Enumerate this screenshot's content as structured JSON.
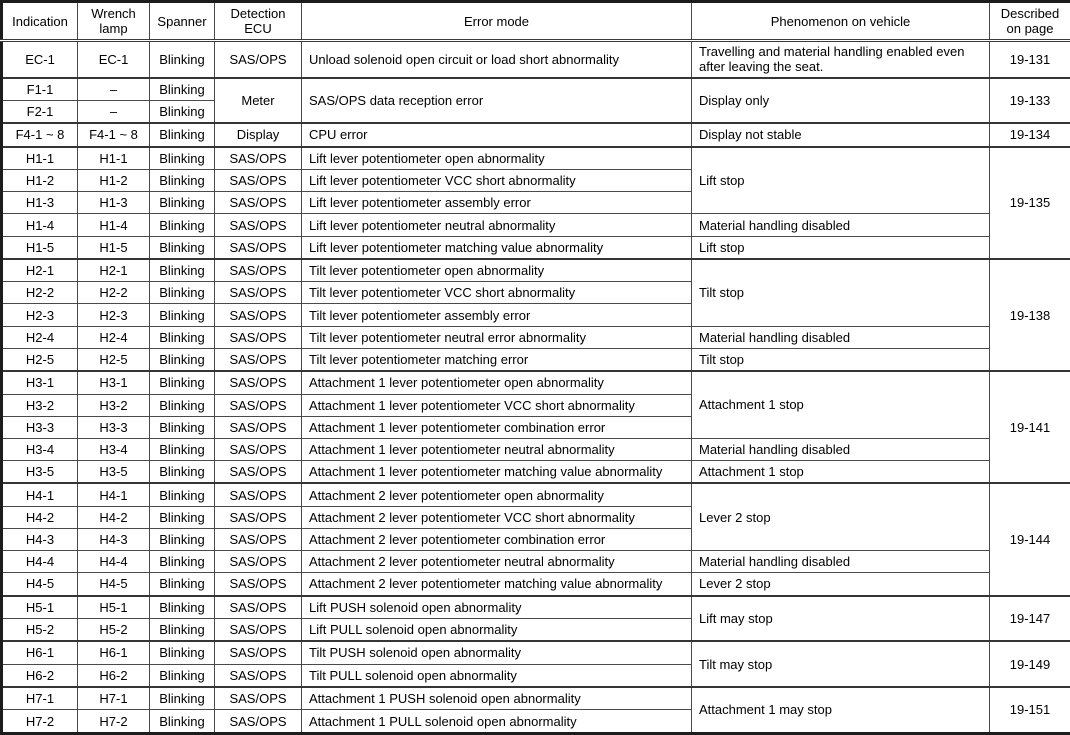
{
  "table": {
    "columns": [
      {
        "label": "Indication"
      },
      {
        "label": "Wrench\nlamp"
      },
      {
        "label": "Spanner"
      },
      {
        "label": "Detection\nECU"
      },
      {
        "label": "Error mode"
      },
      {
        "label": "Phenomenon on vehicle"
      },
      {
        "label": "Described\non page"
      }
    ],
    "rows": [
      {
        "group_start": true,
        "tall": true,
        "cells": [
          {
            "col": 0,
            "text": "EC-1"
          },
          {
            "col": 1,
            "text": "EC-1"
          },
          {
            "col": 2,
            "text": "Blinking"
          },
          {
            "col": 3,
            "text": "SAS/OPS"
          },
          {
            "col": 4,
            "text": "Unload solenoid open circuit or load short abnormality"
          },
          {
            "col": 5,
            "text": "Travelling and material handling enabled even after leaving the seat."
          },
          {
            "col": 6,
            "text": "19-131"
          }
        ]
      },
      {
        "group_start": true,
        "cells": [
          {
            "col": 0,
            "text": "F1-1"
          },
          {
            "col": 1,
            "text": "–"
          },
          {
            "col": 2,
            "text": "Blinking"
          },
          {
            "col": 3,
            "text": "Meter",
            "rowspan": 2
          },
          {
            "col": 4,
            "text": "SAS/OPS data reception error",
            "rowspan": 2
          },
          {
            "col": 5,
            "text": "Display only",
            "rowspan": 2
          },
          {
            "col": 6,
            "text": "19-133",
            "rowspan": 2
          }
        ]
      },
      {
        "cells": [
          {
            "col": 0,
            "text": "F2-1"
          },
          {
            "col": 1,
            "text": "–"
          },
          {
            "col": 2,
            "text": "Blinking"
          }
        ]
      },
      {
        "group_start": true,
        "cells": [
          {
            "col": 0,
            "text": "F4-1 ~ 8"
          },
          {
            "col": 1,
            "text": "F4-1 ~ 8"
          },
          {
            "col": 2,
            "text": "Blinking"
          },
          {
            "col": 3,
            "text": "Display"
          },
          {
            "col": 4,
            "text": "CPU error"
          },
          {
            "col": 5,
            "text": "Display not stable"
          },
          {
            "col": 6,
            "text": "19-134"
          }
        ]
      },
      {
        "group_start": true,
        "cells": [
          {
            "col": 0,
            "text": "H1-1"
          },
          {
            "col": 1,
            "text": "H1-1"
          },
          {
            "col": 2,
            "text": "Blinking"
          },
          {
            "col": 3,
            "text": "SAS/OPS"
          },
          {
            "col": 4,
            "text": "Lift lever potentiometer open abnormality"
          },
          {
            "col": 5,
            "text": "Lift stop",
            "rowspan": 3
          },
          {
            "col": 6,
            "text": "19-135",
            "rowspan": 5
          }
        ]
      },
      {
        "cells": [
          {
            "col": 0,
            "text": "H1-2"
          },
          {
            "col": 1,
            "text": "H1-2"
          },
          {
            "col": 2,
            "text": "Blinking"
          },
          {
            "col": 3,
            "text": "SAS/OPS"
          },
          {
            "col": 4,
            "text": "Lift lever potentiometer VCC short abnormality"
          }
        ]
      },
      {
        "cells": [
          {
            "col": 0,
            "text": "H1-3"
          },
          {
            "col": 1,
            "text": "H1-3"
          },
          {
            "col": 2,
            "text": "Blinking"
          },
          {
            "col": 3,
            "text": "SAS/OPS"
          },
          {
            "col": 4,
            "text": "Lift lever potentiometer assembly error"
          }
        ]
      },
      {
        "cells": [
          {
            "col": 0,
            "text": "H1-4"
          },
          {
            "col": 1,
            "text": "H1-4"
          },
          {
            "col": 2,
            "text": "Blinking"
          },
          {
            "col": 3,
            "text": "SAS/OPS"
          },
          {
            "col": 4,
            "text": "Lift lever potentiometer neutral abnormality"
          },
          {
            "col": 5,
            "text": "Material handling disabled"
          }
        ]
      },
      {
        "cells": [
          {
            "col": 0,
            "text": "H1-5"
          },
          {
            "col": 1,
            "text": "H1-5"
          },
          {
            "col": 2,
            "text": "Blinking"
          },
          {
            "col": 3,
            "text": "SAS/OPS"
          },
          {
            "col": 4,
            "text": "Lift lever potentiometer matching value abnormality"
          },
          {
            "col": 5,
            "text": "Lift stop"
          }
        ]
      },
      {
        "group_start": true,
        "cells": [
          {
            "col": 0,
            "text": "H2-1"
          },
          {
            "col": 1,
            "text": "H2-1"
          },
          {
            "col": 2,
            "text": "Blinking"
          },
          {
            "col": 3,
            "text": "SAS/OPS"
          },
          {
            "col": 4,
            "text": "Tilt lever potentiometer open abnormality"
          },
          {
            "col": 5,
            "text": "Tilt stop",
            "rowspan": 3
          },
          {
            "col": 6,
            "text": "19-138",
            "rowspan": 5
          }
        ]
      },
      {
        "cells": [
          {
            "col": 0,
            "text": "H2-2"
          },
          {
            "col": 1,
            "text": "H2-2"
          },
          {
            "col": 2,
            "text": "Blinking"
          },
          {
            "col": 3,
            "text": "SAS/OPS"
          },
          {
            "col": 4,
            "text": "Tilt lever potentiometer VCC short abnormality"
          }
        ]
      },
      {
        "cells": [
          {
            "col": 0,
            "text": "H2-3"
          },
          {
            "col": 1,
            "text": "H2-3"
          },
          {
            "col": 2,
            "text": "Blinking"
          },
          {
            "col": 3,
            "text": "SAS/OPS"
          },
          {
            "col": 4,
            "text": "Tilt lever potentiometer assembly error"
          }
        ]
      },
      {
        "cells": [
          {
            "col": 0,
            "text": "H2-4"
          },
          {
            "col": 1,
            "text": "H2-4"
          },
          {
            "col": 2,
            "text": "Blinking"
          },
          {
            "col": 3,
            "text": "SAS/OPS"
          },
          {
            "col": 4,
            "text": "Tilt lever potentiometer neutral error abnormality"
          },
          {
            "col": 5,
            "text": "Material handling disabled"
          }
        ]
      },
      {
        "cells": [
          {
            "col": 0,
            "text": "H2-5"
          },
          {
            "col": 1,
            "text": "H2-5"
          },
          {
            "col": 2,
            "text": "Blinking"
          },
          {
            "col": 3,
            "text": "SAS/OPS"
          },
          {
            "col": 4,
            "text": "Tilt lever potentiometer matching error"
          },
          {
            "col": 5,
            "text": "Tilt stop"
          }
        ]
      },
      {
        "group_start": true,
        "cells": [
          {
            "col": 0,
            "text": "H3-1"
          },
          {
            "col": 1,
            "text": "H3-1"
          },
          {
            "col": 2,
            "text": "Blinking"
          },
          {
            "col": 3,
            "text": "SAS/OPS"
          },
          {
            "col": 4,
            "text": "Attachment 1 lever potentiometer open abnormality"
          },
          {
            "col": 5,
            "text": "Attachment 1 stop",
            "rowspan": 3
          },
          {
            "col": 6,
            "text": "19-141",
            "rowspan": 5
          }
        ]
      },
      {
        "cells": [
          {
            "col": 0,
            "text": "H3-2"
          },
          {
            "col": 1,
            "text": "H3-2"
          },
          {
            "col": 2,
            "text": "Blinking"
          },
          {
            "col": 3,
            "text": "SAS/OPS"
          },
          {
            "col": 4,
            "text": "Attachment 1 lever potentiometer VCC short abnormality"
          }
        ]
      },
      {
        "cells": [
          {
            "col": 0,
            "text": "H3-3"
          },
          {
            "col": 1,
            "text": "H3-3"
          },
          {
            "col": 2,
            "text": "Blinking"
          },
          {
            "col": 3,
            "text": "SAS/OPS"
          },
          {
            "col": 4,
            "text": "Attachment 1 lever potentiometer combination error"
          }
        ]
      },
      {
        "cells": [
          {
            "col": 0,
            "text": "H3-4"
          },
          {
            "col": 1,
            "text": "H3-4"
          },
          {
            "col": 2,
            "text": "Blinking"
          },
          {
            "col": 3,
            "text": "SAS/OPS"
          },
          {
            "col": 4,
            "text": "Attachment 1 lever potentiometer neutral abnormality"
          },
          {
            "col": 5,
            "text": "Material handling disabled"
          }
        ]
      },
      {
        "cells": [
          {
            "col": 0,
            "text": "H3-5"
          },
          {
            "col": 1,
            "text": "H3-5"
          },
          {
            "col": 2,
            "text": "Blinking"
          },
          {
            "col": 3,
            "text": "SAS/OPS"
          },
          {
            "col": 4,
            "text": "Attachment 1 lever potentiometer matching value abnormality"
          },
          {
            "col": 5,
            "text": "Attachment 1 stop"
          }
        ]
      },
      {
        "group_start": true,
        "cells": [
          {
            "col": 0,
            "text": "H4-1"
          },
          {
            "col": 1,
            "text": "H4-1"
          },
          {
            "col": 2,
            "text": "Blinking"
          },
          {
            "col": 3,
            "text": "SAS/OPS"
          },
          {
            "col": 4,
            "text": "Attachment 2 lever potentiometer open abnormality"
          },
          {
            "col": 5,
            "text": "Lever 2 stop",
            "rowspan": 3
          },
          {
            "col": 6,
            "text": "19-144",
            "rowspan": 5
          }
        ]
      },
      {
        "cells": [
          {
            "col": 0,
            "text": "H4-2"
          },
          {
            "col": 1,
            "text": "H4-2"
          },
          {
            "col": 2,
            "text": "Blinking"
          },
          {
            "col": 3,
            "text": "SAS/OPS"
          },
          {
            "col": 4,
            "text": "Attachment 2 lever potentiometer VCC short abnormality"
          }
        ]
      },
      {
        "cells": [
          {
            "col": 0,
            "text": "H4-3"
          },
          {
            "col": 1,
            "text": "H4-3"
          },
          {
            "col": 2,
            "text": "Blinking"
          },
          {
            "col": 3,
            "text": "SAS/OPS"
          },
          {
            "col": 4,
            "text": "Attachment 2 lever potentiometer combination error"
          }
        ]
      },
      {
        "cells": [
          {
            "col": 0,
            "text": "H4-4"
          },
          {
            "col": 1,
            "text": "H4-4"
          },
          {
            "col": 2,
            "text": "Blinking"
          },
          {
            "col": 3,
            "text": "SAS/OPS"
          },
          {
            "col": 4,
            "text": "Attachment 2 lever potentiometer neutral abnormality"
          },
          {
            "col": 5,
            "text": "Material handling disabled"
          }
        ]
      },
      {
        "cells": [
          {
            "col": 0,
            "text": "H4-5"
          },
          {
            "col": 1,
            "text": "H4-5"
          },
          {
            "col": 2,
            "text": "Blinking"
          },
          {
            "col": 3,
            "text": "SAS/OPS"
          },
          {
            "col": 4,
            "text": "Attachment 2 lever potentiometer matching value abnormality"
          },
          {
            "col": 5,
            "text": "Lever 2 stop"
          }
        ]
      },
      {
        "group_start": true,
        "cells": [
          {
            "col": 0,
            "text": "H5-1"
          },
          {
            "col": 1,
            "text": "H5-1"
          },
          {
            "col": 2,
            "text": "Blinking"
          },
          {
            "col": 3,
            "text": "SAS/OPS"
          },
          {
            "col": 4,
            "text": "Lift PUSH solenoid open abnormality"
          },
          {
            "col": 5,
            "text": "Lift may stop",
            "rowspan": 2
          },
          {
            "col": 6,
            "text": "19-147",
            "rowspan": 2
          }
        ]
      },
      {
        "cells": [
          {
            "col": 0,
            "text": "H5-2"
          },
          {
            "col": 1,
            "text": "H5-2"
          },
          {
            "col": 2,
            "text": "Blinking"
          },
          {
            "col": 3,
            "text": "SAS/OPS"
          },
          {
            "col": 4,
            "text": "Lift PULL solenoid open abnormality"
          }
        ]
      },
      {
        "group_start": true,
        "cells": [
          {
            "col": 0,
            "text": "H6-1"
          },
          {
            "col": 1,
            "text": "H6-1"
          },
          {
            "col": 2,
            "text": "Blinking"
          },
          {
            "col": 3,
            "text": "SAS/OPS"
          },
          {
            "col": 4,
            "text": "Tilt PUSH solenoid open abnormality"
          },
          {
            "col": 5,
            "text": "Tilt may stop",
            "rowspan": 2
          },
          {
            "col": 6,
            "text": "19-149",
            "rowspan": 2
          }
        ]
      },
      {
        "cells": [
          {
            "col": 0,
            "text": "H6-2"
          },
          {
            "col": 1,
            "text": "H6-2"
          },
          {
            "col": 2,
            "text": "Blinking"
          },
          {
            "col": 3,
            "text": "SAS/OPS"
          },
          {
            "col": 4,
            "text": "Tilt PULL solenoid open abnormality"
          }
        ]
      },
      {
        "group_start": true,
        "cells": [
          {
            "col": 0,
            "text": "H7-1"
          },
          {
            "col": 1,
            "text": "H7-1"
          },
          {
            "col": 2,
            "text": "Blinking"
          },
          {
            "col": 3,
            "text": "SAS/OPS"
          },
          {
            "col": 4,
            "text": "Attachment 1 PUSH solenoid open abnormality"
          },
          {
            "col": 5,
            "text": "Attachment 1 may stop",
            "rowspan": 2
          },
          {
            "col": 6,
            "text": "19-151",
            "rowspan": 2
          }
        ]
      },
      {
        "cells": [
          {
            "col": 0,
            "text": "H7-2"
          },
          {
            "col": 1,
            "text": "H7-2"
          },
          {
            "col": 2,
            "text": "Blinking"
          },
          {
            "col": 3,
            "text": "SAS/OPS"
          },
          {
            "col": 4,
            "text": "Attachment 1 PULL solenoid open abnormality"
          }
        ]
      }
    ]
  }
}
